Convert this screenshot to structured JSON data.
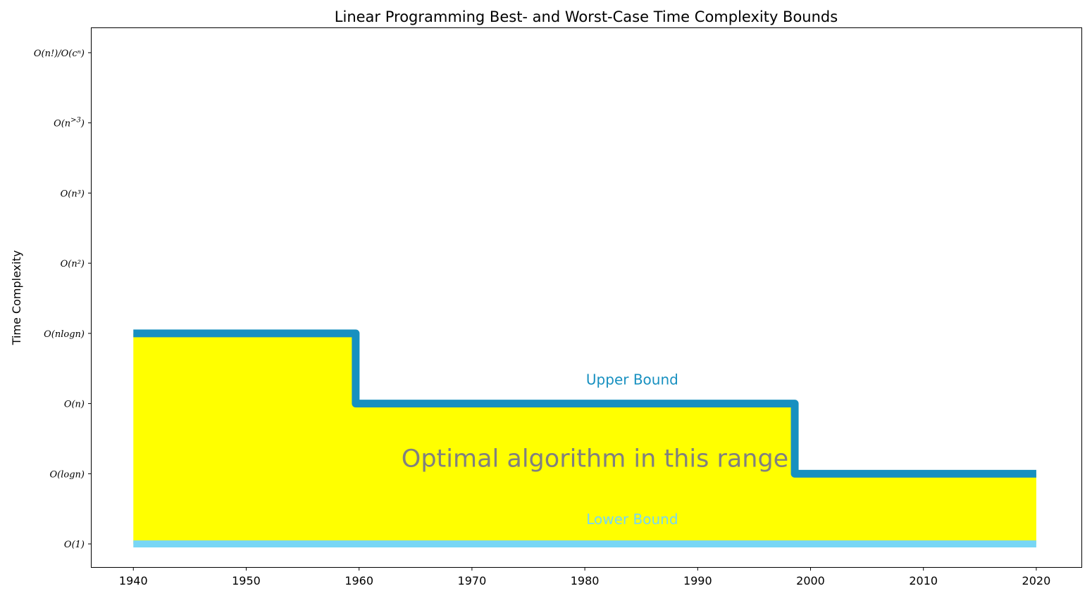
{
  "chart_data": {
    "type": "line",
    "title": "Linear Programming Best- and Worst-Case Time Complexity Bounds",
    "xlabel": "",
    "ylabel": "Time Complexity",
    "xlim": [
      1936.3,
      2024.0
    ],
    "ylim": [
      -0.33,
      7.35
    ],
    "x_ticks": [
      1940,
      1950,
      1960,
      1970,
      1980,
      1990,
      2000,
      2010,
      2020
    ],
    "y_ticks": [
      {
        "value": 0,
        "label": "O(1)"
      },
      {
        "value": 1,
        "label": "O(logn)"
      },
      {
        "value": 2,
        "label": "O(n)"
      },
      {
        "value": 3,
        "label": "O(nlogn)"
      },
      {
        "value": 4,
        "label": "O(n²)"
      },
      {
        "value": 5,
        "label": "O(n³)"
      },
      {
        "value": 6,
        "label": "O(n^>3)"
      },
      {
        "value": 7,
        "label": "O(n!)/O(cⁿ)"
      }
    ],
    "series": [
      {
        "name": "Upper Bound",
        "color": "#1790c0",
        "points": [
          [
            1940,
            3
          ],
          [
            1959.7,
            3
          ],
          [
            1959.7,
            2
          ],
          [
            1998.6,
            2
          ],
          [
            1998.6,
            1
          ],
          [
            2020,
            1
          ]
        ]
      },
      {
        "name": "Lower Bound",
        "color": "#78d6f5",
        "points": [
          [
            1940,
            0
          ],
          [
            2020,
            0
          ]
        ]
      }
    ],
    "fill": {
      "color": "#ffff00",
      "between": [
        "Lower Bound",
        "Upper Bound"
      ]
    },
    "annotations": [
      {
        "text": "Upper Bound",
        "x": 1984.2,
        "y": 2.27,
        "color": "#1790c0",
        "size": "medium"
      },
      {
        "text": "Lower Bound",
        "x": 1984.2,
        "y": 0.28,
        "color": "#78d6f5",
        "size": "medium"
      },
      {
        "text": "Optimal algorithm in this range",
        "x": 1980.9,
        "y": 1.1,
        "color": "#808080",
        "size": "large"
      }
    ],
    "grid": false,
    "legend": "none"
  }
}
